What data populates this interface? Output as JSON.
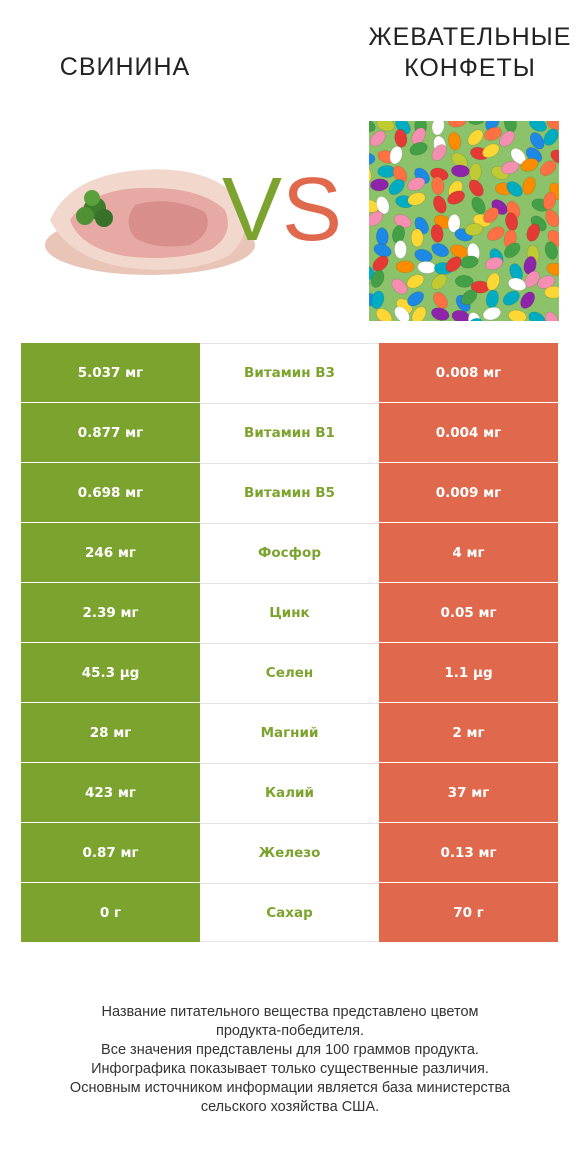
{
  "header": {
    "left_title": "СВИНИНА",
    "right_title_line1": "ЖЕВАТЕЛЬНЫЕ",
    "right_title_line2": "КОНФЕТЫ",
    "vs_v": "V",
    "vs_s": "S"
  },
  "colors": {
    "left_accent": "#7ba32e",
    "right_accent": "#e0694d"
  },
  "rows": [
    {
      "left": "5.037 мг",
      "name": "Витамин B3",
      "right": "0.008 мг"
    },
    {
      "left": "0.877 мг",
      "name": "Витамин B1",
      "right": "0.004 мг"
    },
    {
      "left": "0.698 мг",
      "name": "Витамин B5",
      "right": "0.009 мг"
    },
    {
      "left": "246 мг",
      "name": "Фосфор",
      "right": "4 мг"
    },
    {
      "left": "2.39 мг",
      "name": "Цинк",
      "right": "0.05 мг"
    },
    {
      "left": "45.3 µg",
      "name": "Селен",
      "right": "1.1 µg"
    },
    {
      "left": "28 мг",
      "name": "Магний",
      "right": "2 мг"
    },
    {
      "left": "423 мг",
      "name": "Калий",
      "right": "37 мг"
    },
    {
      "left": "0.87 мг",
      "name": "Железо",
      "right": "0.13 мг"
    },
    {
      "left": "0 г",
      "name": "Сахар",
      "right": "70 г"
    }
  ],
  "footer": {
    "line1": "Название питательного вещества представлено цветом",
    "line2": "продукта-победителя.",
    "line3": "Все значения представлены для 100 граммов продукта.",
    "line4": "Инфографика показывает только существенные различия.",
    "line5": "Основным источником информации является база министерства",
    "line6": "сельского хозяйства США."
  }
}
